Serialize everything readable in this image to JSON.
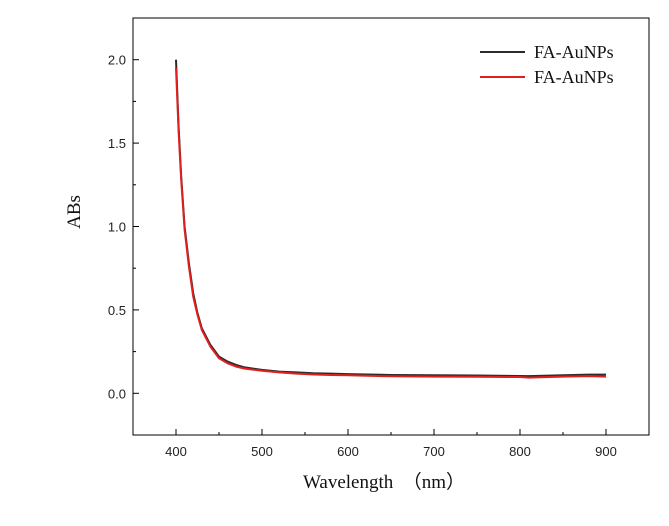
{
  "chart_data": {
    "type": "line",
    "title": "",
    "xlabel": "Wavelength　（nm）",
    "ylabel": "ABs",
    "xlim": [
      350,
      950
    ],
    "ylim": [
      -0.25,
      2.25
    ],
    "xticks": [
      400,
      500,
      600,
      700,
      800,
      900
    ],
    "yticks": [
      0.0,
      0.5,
      1.0,
      1.5,
      2.0
    ],
    "xtick_labels": [
      "400",
      "500",
      "600",
      "700",
      "800",
      "900"
    ],
    "ytick_labels": [
      "0.0",
      "0.5",
      "1.0",
      "1.5",
      "2.0"
    ],
    "grid": false,
    "legend_position": "top-right",
    "x": [
      400,
      403,
      406,
      410,
      415,
      420,
      425,
      430,
      440,
      450,
      460,
      470,
      480,
      500,
      520,
      540,
      560,
      580,
      600,
      650,
      700,
      750,
      800,
      810,
      850,
      880,
      900
    ],
    "series": [
      {
        "name": "FA-AuNPs",
        "color": "#2b2b2b",
        "values": [
          2.0,
          1.6,
          1.3,
          1.0,
          0.78,
          0.6,
          0.48,
          0.39,
          0.29,
          0.22,
          0.19,
          0.17,
          0.155,
          0.14,
          0.13,
          0.125,
          0.12,
          0.118,
          0.115,
          0.11,
          0.108,
          0.107,
          0.104,
          0.103,
          0.108,
          0.112,
          0.112
        ]
      },
      {
        "name": "FA-AuNPs",
        "color": "#e02020",
        "values": [
          1.95,
          1.57,
          1.28,
          0.98,
          0.76,
          0.58,
          0.47,
          0.38,
          0.28,
          0.21,
          0.18,
          0.16,
          0.148,
          0.135,
          0.125,
          0.118,
          0.113,
          0.11,
          0.108,
          0.102,
          0.1,
          0.099,
          0.098,
          0.094,
          0.1,
          0.103,
          0.1
        ]
      }
    ]
  }
}
